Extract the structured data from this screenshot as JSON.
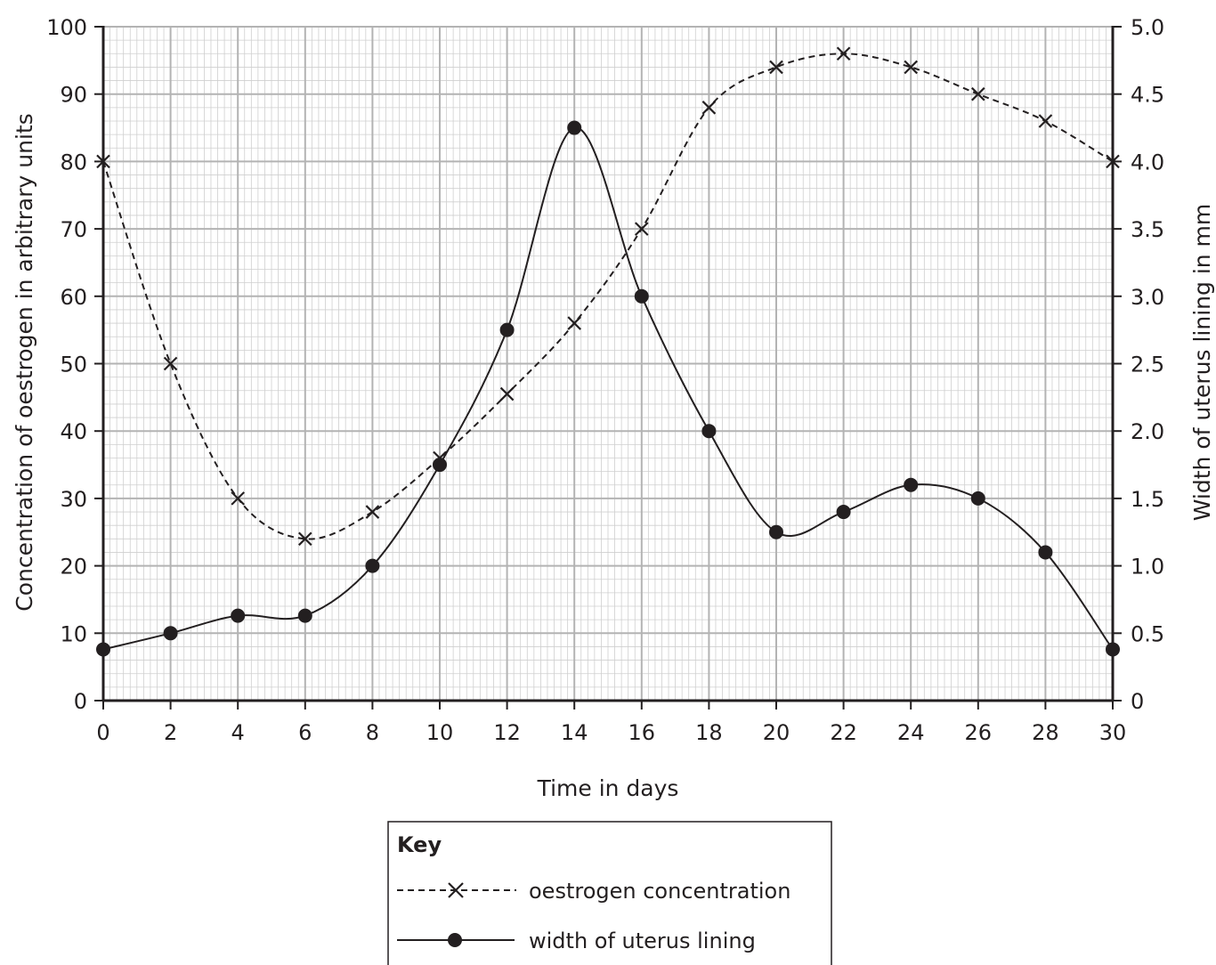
{
  "chart_data": {
    "type": "line",
    "title": "",
    "xlabel": "Time in days",
    "ylabel_left": "Concentration of oestrogen in arbitrary units",
    "ylabel_right": "Width of uterus lining in mm",
    "xlim": [
      0,
      30
    ],
    "ylim_left": [
      0,
      100
    ],
    "ylim_right": [
      0,
      5.0
    ],
    "x_ticks": [
      "0",
      "2",
      "4",
      "6",
      "8",
      "10",
      "12",
      "14",
      "16",
      "18",
      "20",
      "22",
      "24",
      "26",
      "28",
      "30"
    ],
    "y_left_ticks": [
      "0",
      "10",
      "20",
      "30",
      "40",
      "50",
      "60",
      "70",
      "80",
      "90",
      "100"
    ],
    "y_right_ticks": [
      "0",
      "0.5",
      "1.0",
      "1.5",
      "2.0",
      "2.5",
      "3.0",
      "3.5",
      "4.0",
      "4.5",
      "5.0"
    ],
    "grid": true,
    "legend": {
      "position": "bottom-center",
      "title": "Key"
    },
    "series": [
      {
        "name": "oestrogen concentration",
        "axis": "left",
        "style": "dashed",
        "marker": "cross",
        "x": [
          0,
          2,
          4,
          6,
          8,
          10,
          12,
          14,
          16,
          18,
          20,
          22,
          24,
          26,
          28,
          30
        ],
        "values": [
          80,
          50,
          30,
          24,
          28,
          36,
          45.5,
          56,
          70,
          88,
          94,
          96,
          94,
          90,
          86,
          80
        ]
      },
      {
        "name": "width of uterus lining",
        "axis": "right",
        "style": "solid",
        "marker": "dot",
        "x": [
          0,
          2,
          4,
          6,
          8,
          10,
          12,
          14,
          16,
          18,
          20,
          22,
          24,
          26,
          28,
          30
        ],
        "values": [
          0.38,
          0.5,
          0.63,
          0.63,
          1.0,
          1.75,
          2.75,
          4.25,
          3.0,
          2.0,
          1.25,
          1.4,
          1.6,
          1.5,
          1.1,
          0.38
        ]
      }
    ],
    "colors": {
      "ink": "#231f20",
      "major_grid": "#b3b3b3",
      "minor_grid": "#cfcfcf"
    }
  }
}
